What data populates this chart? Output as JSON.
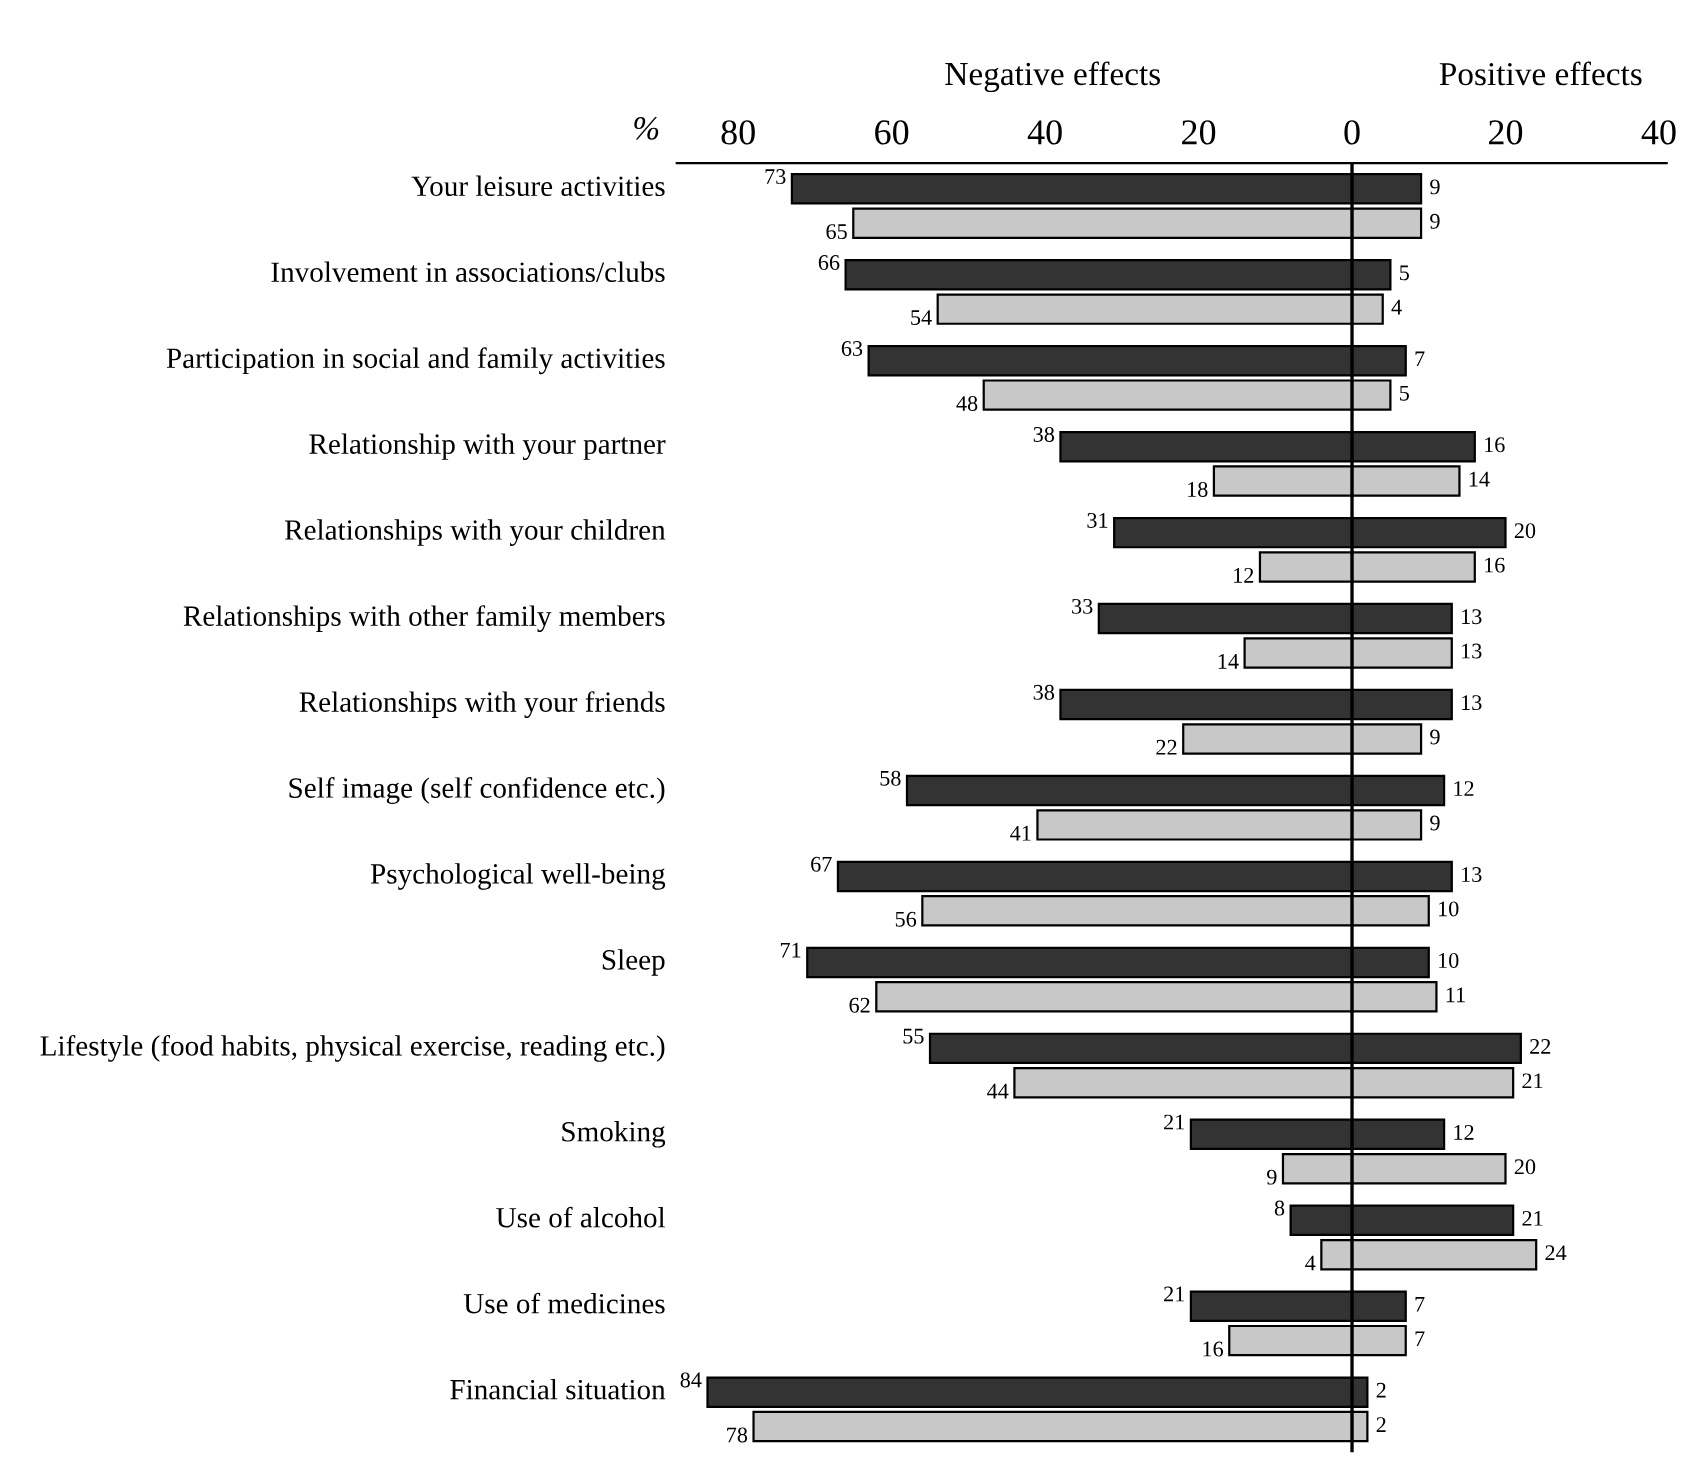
{
  "chart_data": {
    "type": "bar",
    "orientation": "horizontal",
    "categories": [
      "Your leisure activities",
      "Involvement in associations/clubs",
      "Participation in social and family activities",
      "Relationship with your partner",
      "Relationships with your children",
      "Relationships with other family members",
      "Relationships with your friends",
      "Self image (self confidence etc.)",
      "Psychological well-being",
      "Sleep",
      "Lifestyle (food habits, physical exercise, reading etc.)",
      "Smoking",
      "Use of alcohol",
      "Use of medicines",
      "Financial situation"
    ],
    "series": [
      {
        "color": "#333333",
        "values": [
          73,
          66,
          63,
          38,
          31,
          33,
          38,
          58,
          67,
          71,
          55,
          21,
          8,
          21,
          84
        ],
        "base": [
          -73,
          -66,
          -63,
          -38,
          -31,
          -33,
          -38,
          -58,
          -67,
          -71,
          -55,
          -21,
          -8,
          -21,
          -84
        ],
        "value_labels": [
          "73",
          "66",
          "63",
          "38",
          "31",
          "33",
          "38",
          "58",
          "67",
          "71",
          "55",
          "21",
          "8",
          "21",
          "84"
        ]
      },
      {
        "color": "#333333",
        "values": [
          9,
          5,
          7,
          16,
          20,
          13,
          13,
          12,
          13,
          10,
          22,
          12,
          21,
          7,
          2
        ],
        "value_labels": [
          "9",
          "5",
          "7",
          "16",
          "20",
          "13",
          "13",
          "12",
          "13",
          "10",
          "22",
          "12",
          "21",
          "7",
          "2"
        ]
      },
      {
        "color": "#c8c8c8",
        "values": [
          65,
          54,
          48,
          18,
          12,
          14,
          22,
          41,
          56,
          62,
          44,
          9,
          4,
          16,
          78
        ],
        "base": [
          -65,
          -54,
          -48,
          -18,
          -12,
          -14,
          -22,
          -41,
          -56,
          -62,
          -44,
          -9,
          -4,
          -16,
          -78
        ],
        "value_labels": [
          "65",
          "54",
          "48",
          "18",
          "12",
          "14",
          "22",
          "41",
          "56",
          "62",
          "44",
          "9",
          "4",
          "16",
          "78"
        ]
      },
      {
        "color": "#c8c8c8",
        "values": [
          9,
          4,
          5,
          14,
          16,
          13,
          9,
          9,
          10,
          11,
          21,
          20,
          24,
          7,
          2
        ],
        "value_labels": [
          "9",
          "4",
          "5",
          "14",
          "16",
          "13",
          "9",
          "9",
          "10",
          "11",
          "21",
          "20",
          "24",
          "7",
          "2"
        ]
      }
    ],
    "xlim": [
      -88,
      41
    ],
    "xticks": [
      {
        "value": -80,
        "label": "80"
      },
      {
        "value": -60,
        "label": "60"
      },
      {
        "value": -40,
        "label": "40"
      },
      {
        "value": -20,
        "label": "20"
      },
      0,
      20,
      40
    ],
    "ref_lines": [
      {
        "axis": "x",
        "value": 0,
        "color": "#000000"
      }
    ],
    "annotations": [
      "Negative effects",
      "Positive effects",
      "%"
    ]
  }
}
